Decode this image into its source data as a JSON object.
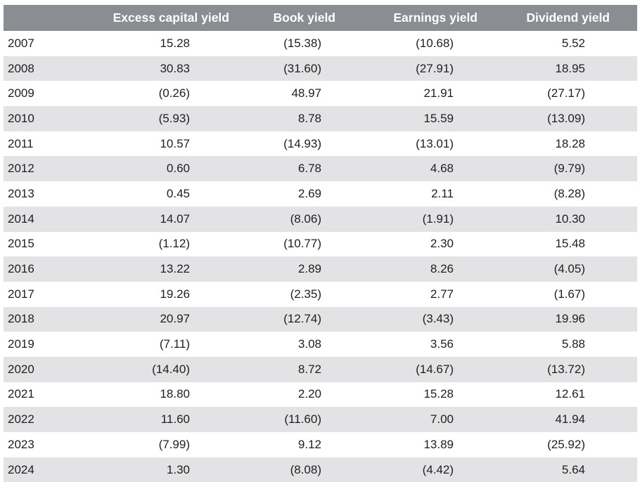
{
  "table": {
    "headers": [
      "",
      "Excess capital yield",
      "Book yield",
      "Earnings yield",
      "Dividend yield"
    ],
    "rows": [
      [
        "2007",
        "15.28",
        "(15.38)",
        "(10.68)",
        "5.52"
      ],
      [
        "2008",
        "30.83",
        "(31.60)",
        "(27.91)",
        "18.95"
      ],
      [
        "2009",
        "(0.26)",
        "48.97",
        "21.91",
        "(27.17)"
      ],
      [
        "2010",
        "(5.93)",
        "8.78",
        "15.59",
        "(13.09)"
      ],
      [
        "2011",
        "10.57",
        "(14.93)",
        "(13.01)",
        "18.28"
      ],
      [
        "2012",
        "0.60",
        "6.78",
        "4.68",
        "(9.79)"
      ],
      [
        "2013",
        "0.45",
        "2.69",
        "2.11",
        "(8.28)"
      ],
      [
        "2014",
        "14.07",
        "(8.06)",
        "(1.91)",
        "10.30"
      ],
      [
        "2015",
        "(1.12)",
        "(10.77)",
        "2.30",
        "15.48"
      ],
      [
        "2016",
        "13.22",
        "2.89",
        "8.26",
        "(4.05)"
      ],
      [
        "2017",
        "19.26",
        "(2.35)",
        "2.77",
        "(1.67)"
      ],
      [
        "2018",
        "20.97",
        "(12.74)",
        "(3.43)",
        "19.96"
      ],
      [
        "2019",
        "(7.11)",
        "3.08",
        "3.56",
        "5.88"
      ],
      [
        "2020",
        "(14.40)",
        "8.72",
        "(14.67)",
        "(13.72)"
      ],
      [
        "2021",
        "18.80",
        "2.20",
        "15.28",
        "12.61"
      ],
      [
        "2022",
        "11.60",
        "(11.60)",
        "7.00",
        "41.94"
      ],
      [
        "2023",
        "(7.99)",
        "9.12",
        "13.89",
        "(25.92)"
      ],
      [
        "2024",
        "1.30",
        "(8.08)",
        "(4.42)",
        "5.64"
      ]
    ]
  },
  "colors": {
    "header_bg": "#8a8d92",
    "header_text": "#ffffff",
    "stripe": "#e3e3e5"
  }
}
